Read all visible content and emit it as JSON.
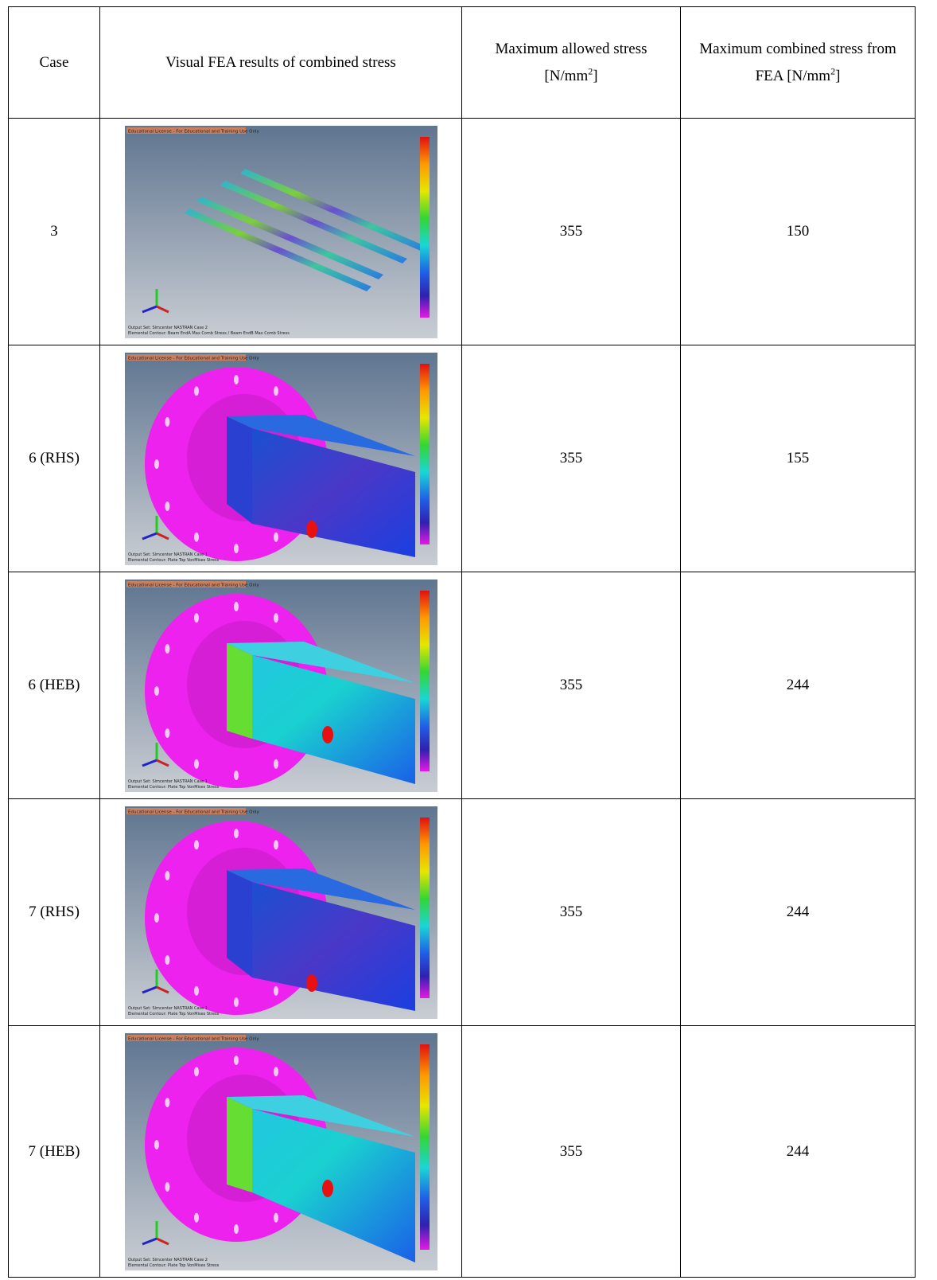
{
  "table": {
    "header": [
      {
        "text": "Case"
      },
      {
        "text": "Visual FEA results of combined stress"
      },
      {
        "text": "Maximum allowed stress [N/mm",
        "sup": "2",
        "after": "]"
      },
      {
        "text": "Maximum combined stress from FEA [N/mm",
        "sup": "2",
        "after": "]"
      }
    ],
    "rows": [
      {
        "case": "3",
        "allowed": 355,
        "fea": 150,
        "image": {
          "license": "Educational License - For Educational and Training Use Only",
          "output_set": "Output Set: Simcenter NASTRAN Case 2",
          "contour": "Elemental Contour: Beam EndA Max Comb Stress / Beam EndB Max Comb Stress"
        }
      },
      {
        "case": "6 (RHS)",
        "allowed": 355,
        "fea": 155,
        "image": {
          "license": "Educational License - For Educational and Training Use Only",
          "output_set": "Output Set: Simcenter NASTRAN Case 1",
          "contour": "Elemental Contour: Plate Top VonMises Stress"
        }
      },
      {
        "case": "6 (HEB)",
        "allowed": 355,
        "fea": 244,
        "image": {
          "license": "Educational License - For Educational and Training Use Only",
          "output_set": "Output Set: Simcenter NASTRAN Case 1",
          "contour": "Elemental Contour: Plate Top VonMises Stress"
        }
      },
      {
        "case": "7 (RHS)",
        "allowed": 355,
        "fea": 244,
        "image": {
          "license": "Educational License - For Educational and Training Use Only",
          "output_set": "Output Set: Simcenter NASTRAN Case 1",
          "contour": "Elemental Contour: Plate Top VonMises Stress"
        }
      },
      {
        "case": "7 (HEB)",
        "allowed": 355,
        "fea": 244,
        "image": {
          "license": "Educational License - For Educational and Training Use Only",
          "output_set": "Output Set: Simcenter NASTRAN Case 2",
          "contour": "Elemental Contour: Plate Top VonMises Stress"
        }
      }
    ]
  }
}
